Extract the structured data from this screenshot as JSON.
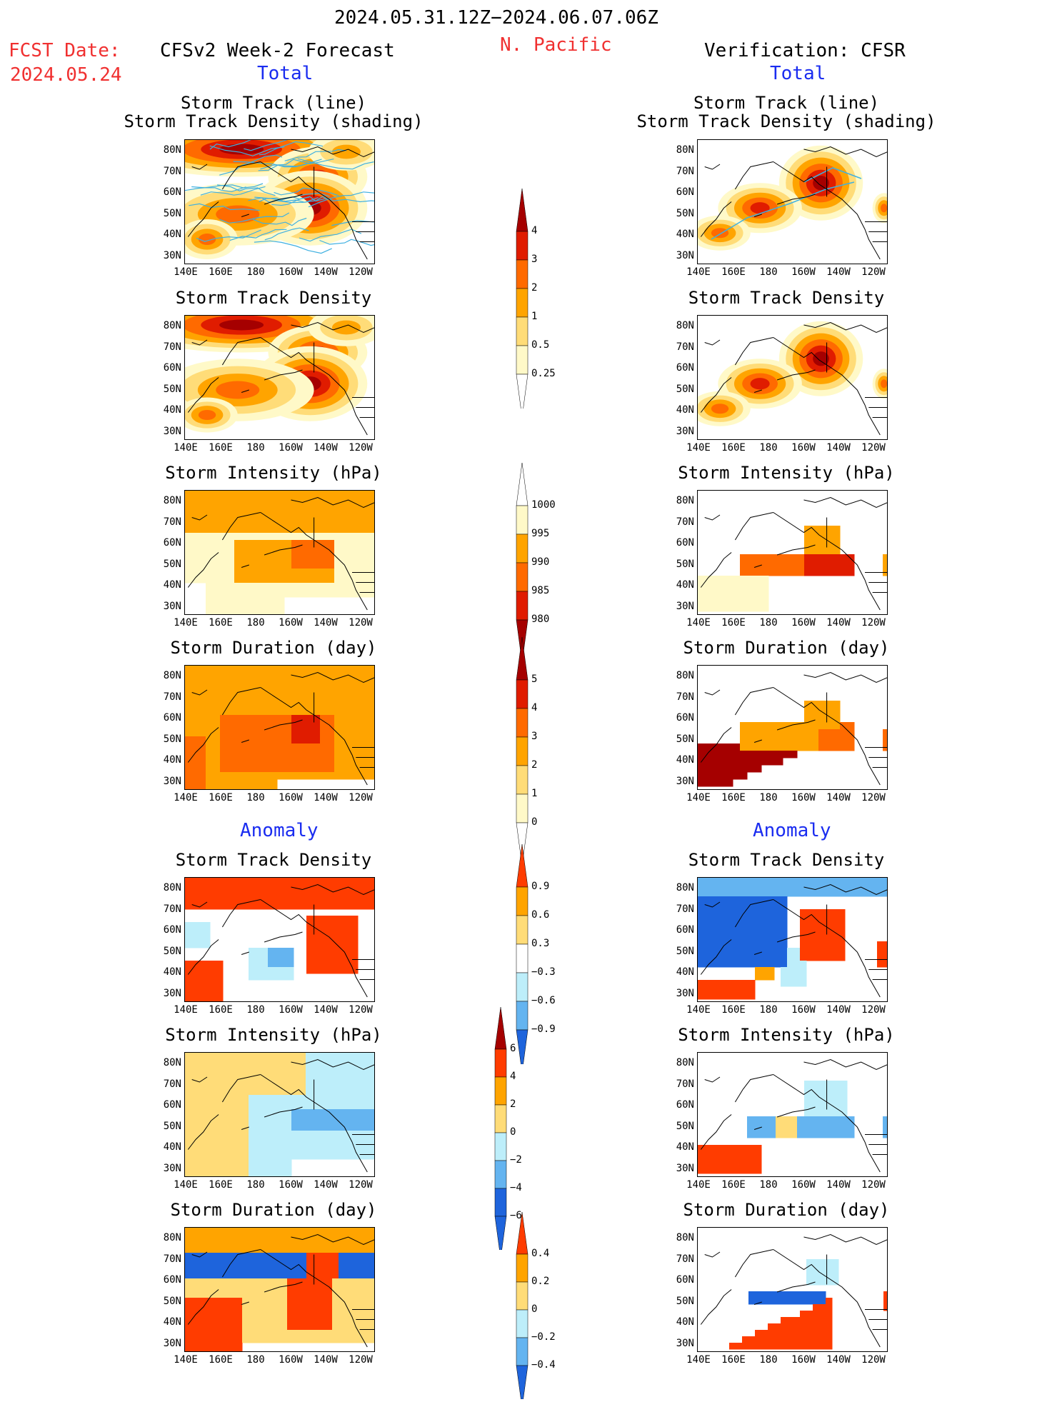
{
  "header": {
    "date_range": "2024.05.31.12Z−2024.06.07.06Z",
    "fcst_label": "FCST Date:",
    "fcst_date": "2024.05.24",
    "model_title": "CFSv2 Week-2 Forecast",
    "region": "N. Pacific",
    "verification_title": "Verification: CFSR",
    "total_left": "Total",
    "total_right": "Total",
    "anomaly_left": "Anomaly",
    "anomaly_right": "Anomaly"
  },
  "axes": {
    "lat_labels": [
      "80N",
      "70N",
      "60N",
      "50N",
      "40N",
      "30N"
    ],
    "lon_labels": [
      "140E",
      "160E",
      "180",
      "160W",
      "140W",
      "120W"
    ]
  },
  "colors": {
    "dens": [
      "#fff9c8",
      "#ffdc78",
      "#ffa400",
      "#ff6a00",
      "#e01c00",
      "#a50000"
    ],
    "inten": [
      "#fff9c8",
      "#ffa400",
      "#ff6a00",
      "#e01c00",
      "#a50000"
    ],
    "anom_pos": [
      "#ffdc78",
      "#ffa400",
      "#ff3c00"
    ],
    "anom_neg": [
      "#bdeefa",
      "#64b4f0",
      "#1e64dc"
    ],
    "track_line": "#3fb0e0"
  },
  "panels": {
    "left": [
      {
        "title1": "Storm Track (line)",
        "title2": "Storm Track Density (shading)"
      },
      {
        "title1": "Storm Track Density",
        "title2": ""
      },
      {
        "title1": "Storm Intensity (hPa)",
        "title2": ""
      },
      {
        "title1": "Storm Duration (day)",
        "title2": ""
      },
      {
        "title1": "Storm Track Density",
        "title2": ""
      },
      {
        "title1": "Storm Intensity (hPa)",
        "title2": ""
      },
      {
        "title1": "Storm Duration (day)",
        "title2": ""
      }
    ],
    "right": [
      {
        "title1": "Storm Track (line)",
        "title2": "Storm Track Density (shading)"
      },
      {
        "title1": "Storm Track Density",
        "title2": ""
      },
      {
        "title1": "Storm Intensity (hPa)",
        "title2": ""
      },
      {
        "title1": "Storm Duration (day)",
        "title2": ""
      },
      {
        "title1": "Storm Track Density",
        "title2": ""
      },
      {
        "title1": "Storm Intensity (hPa)",
        "title2": ""
      },
      {
        "title1": "Storm Duration (day)",
        "title2": ""
      }
    ]
  },
  "colorbars": [
    {
      "name": "density-colorbar",
      "ticks": [
        "4",
        "3",
        "2",
        "1",
        "0.5",
        "0.25"
      ],
      "colors": [
        "#a50000",
        "#e01c00",
        "#ff6a00",
        "#ffa400",
        "#ffdc78",
        "#fff9c8",
        "#ffffff"
      ]
    },
    {
      "name": "intensity-colorbar",
      "ticks": [
        "1000",
        "995",
        "990",
        "985",
        "980"
      ],
      "colors": [
        "#ffffff",
        "#fff9c8",
        "#ffa400",
        "#ff6a00",
        "#e01c00",
        "#a50000"
      ]
    },
    {
      "name": "duration-colorbar",
      "ticks": [
        "5",
        "4",
        "3",
        "2",
        "1",
        "0"
      ],
      "colors": [
        "#a50000",
        "#e01c00",
        "#ff6a00",
        "#ffa400",
        "#ffdc78",
        "#fff9c8",
        "#ffffff"
      ]
    },
    {
      "name": "density-anomaly-colorbar",
      "ticks": [
        "0.9",
        "0.6",
        "0.3",
        "−0.3",
        "−0.6",
        "−0.9"
      ],
      "colors": [
        "#ff3c00",
        "#ffa400",
        "#ffdc78",
        "#ffffff",
        "#bdeefa",
        "#64b4f0",
        "#1e64dc"
      ]
    },
    {
      "name": "intensity-anomaly-colorbar",
      "ticks": [
        "6",
        "4",
        "2",
        "0",
        "−2",
        "−4",
        "−6"
      ],
      "colors": [
        "#a50000",
        "#ff3c00",
        "#ffa400",
        "#ffdc78",
        "#bdeefa",
        "#64b4f0",
        "#1e64dc",
        "#1e64dc"
      ]
    },
    {
      "name": "duration-anomaly-colorbar",
      "ticks": [
        "0.4",
        "0.2",
        "0",
        "−0.2",
        "−0.4"
      ],
      "colors": [
        "#ff3c00",
        "#ffa400",
        "#ffdc78",
        "#bdeefa",
        "#64b4f0",
        "#1e64dc"
      ]
    }
  ]
}
